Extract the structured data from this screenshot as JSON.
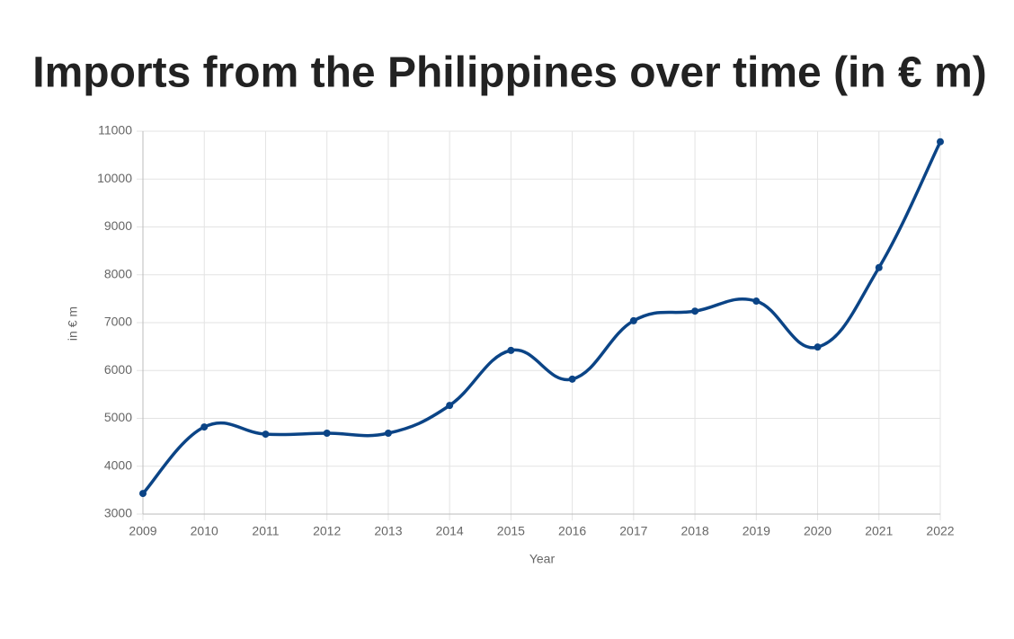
{
  "chart_data": {
    "type": "line",
    "title": "Imports from the Philippines over time (in € m)",
    "x_label": "Year",
    "y_label": "in € m",
    "x": [
      2009,
      2010,
      2011,
      2012,
      2013,
      2014,
      2015,
      2016,
      2017,
      2018,
      2019,
      2020,
      2021,
      2022
    ],
    "series": [
      {
        "name": "Imports",
        "color": "#0b4486",
        "values": [
          3430,
          4820,
          4670,
          4690,
          4690,
          5270,
          6420,
          5820,
          7040,
          7240,
          7450,
          6490,
          8150,
          10780
        ]
      }
    ],
    "xlim": [
      2009,
      2022
    ],
    "xticks": [
      2009,
      2010,
      2011,
      2012,
      2013,
      2014,
      2015,
      2016,
      2017,
      2018,
      2019,
      2020,
      2021,
      2022
    ],
    "ylim": [
      3000,
      11000
    ],
    "yticks": [
      3000,
      4000,
      5000,
      6000,
      7000,
      8000,
      9000,
      10000,
      11000
    ],
    "grid": true
  }
}
